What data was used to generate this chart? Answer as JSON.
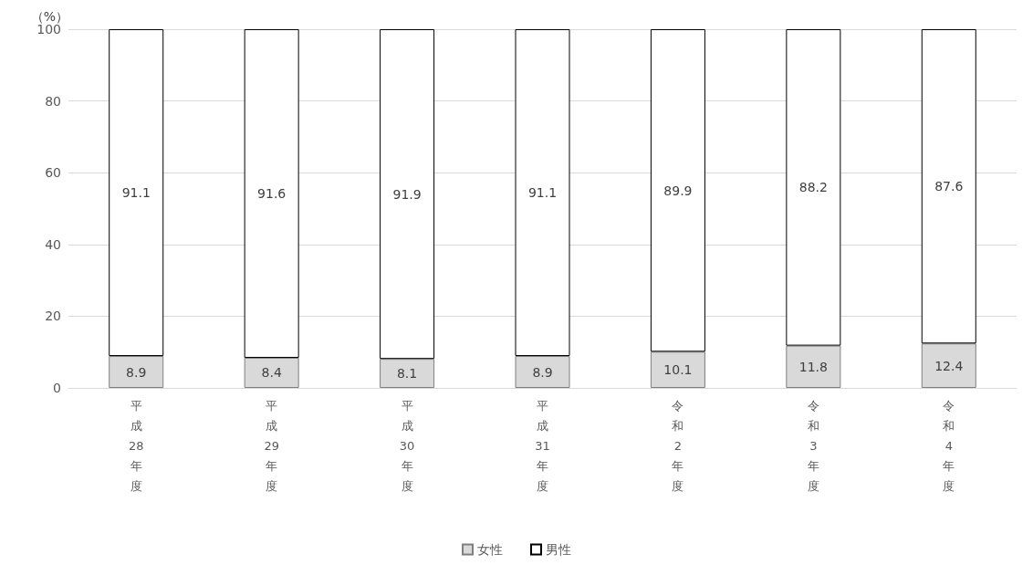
{
  "chart_data": {
    "type": "bar",
    "stacked": true,
    "ylabel": "（%）",
    "categories": [
      "平成28年度",
      "平成29年度",
      "平成30年度",
      "平成31年度",
      "令和2年度",
      "令和3年度",
      "令和4年度"
    ],
    "series": [
      {
        "name": "女性",
        "color": "#d9d9d9",
        "values": [
          8.9,
          8.4,
          8.1,
          8.9,
          10.1,
          11.8,
          12.4
        ]
      },
      {
        "name": "男性",
        "color": "#ffffff",
        "values": [
          91.1,
          91.6,
          91.9,
          91.1,
          89.9,
          88.2,
          87.6
        ]
      }
    ],
    "ylim": [
      0,
      100
    ],
    "yticks": [
      0,
      20,
      40,
      60,
      80,
      100
    ],
    "grid": "y",
    "legend": "bottom",
    "data_labels": true
  }
}
